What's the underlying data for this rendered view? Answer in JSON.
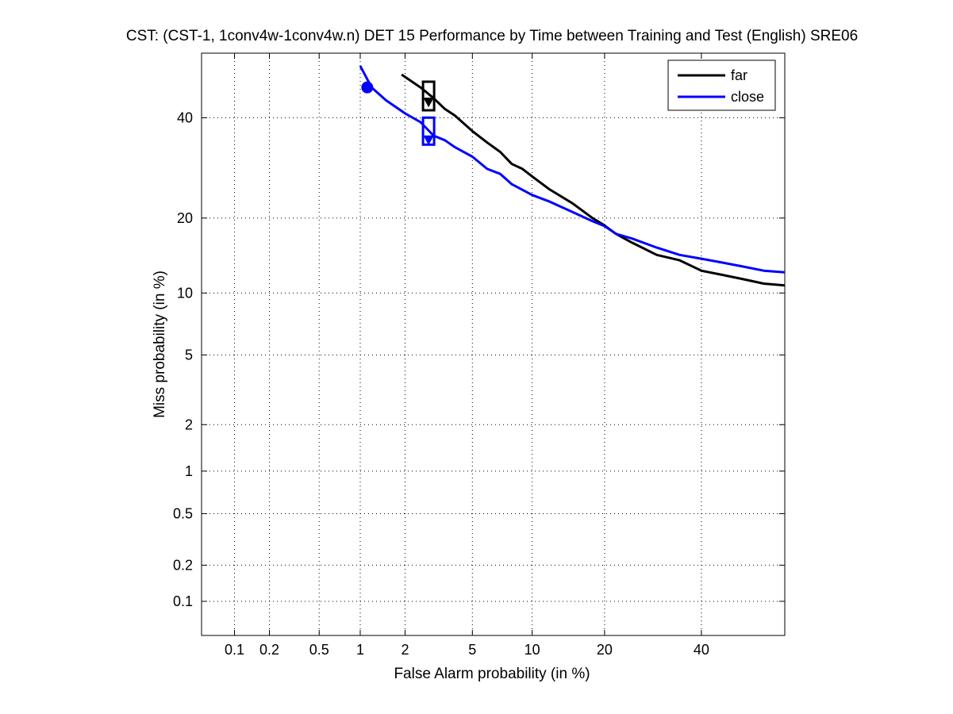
{
  "chart_data": {
    "type": "line",
    "title": "CST: (CST-1, 1conv4w-1conv4w.n) DET 15 Performance by Time between Training and Test (English) SRE06",
    "xlabel": "False Alarm probability (in %)",
    "ylabel": "Miss probability (in %)",
    "xscale": "probit",
    "yscale": "probit",
    "xlim": [
      0.05,
      60
    ],
    "ylim": [
      0.05,
      55
    ],
    "xticks": [
      0.1,
      0.2,
      0.5,
      1,
      2,
      5,
      10,
      20,
      40
    ],
    "xtick_labels": [
      "0.1",
      "0.2",
      "0.5",
      "1",
      "2",
      "5",
      "10",
      "20",
      "40"
    ],
    "yticks": [
      0.1,
      0.2,
      0.5,
      1,
      2,
      5,
      10,
      20,
      40
    ],
    "ytick_labels": [
      "0.1",
      "0.2",
      "0.5",
      "1",
      "2",
      "5",
      "10",
      "20",
      "40"
    ],
    "grid": true,
    "legend_position": "top-right",
    "series": [
      {
        "name": "far",
        "color": "#000000",
        "x": [
          1.9,
          2.5,
          3.0,
          3.5,
          4.0,
          5.0,
          6.0,
          7.0,
          8.0,
          9.0,
          10.0,
          12.0,
          15.0,
          18.0,
          20.0,
          22.0,
          25.0,
          30.0,
          35.0,
          40.0,
          45.0,
          50.0,
          55.0,
          60.0
        ],
        "y": [
          50.0,
          47.0,
          44.5,
          42.0,
          40.5,
          37.0,
          34.5,
          32.5,
          30.0,
          29.0,
          27.5,
          25.0,
          22.5,
          20.0,
          18.8,
          17.5,
          16.2,
          14.5,
          13.8,
          12.5,
          12.0,
          11.5,
          11.0,
          10.8
        ],
        "operating_point": {
          "x": 2.8,
          "y": 43.5
        },
        "min_point": {
          "x": 2.8,
          "y": 45.0
        }
      },
      {
        "name": "close",
        "color": "#0000ff",
        "x": [
          1.0,
          1.2,
          1.5,
          2.0,
          2.5,
          3.0,
          3.5,
          4.0,
          5.0,
          6.0,
          7.0,
          8.0,
          10.0,
          12.0,
          15.0,
          18.0,
          20.0,
          22.0,
          25.0,
          30.0,
          35.0,
          40.0,
          45.0,
          50.0,
          55.0,
          60.0
        ],
        "y": [
          52.0,
          47.0,
          44.0,
          41.0,
          39.0,
          36.0,
          35.0,
          33.5,
          31.5,
          29.0,
          28.0,
          26.0,
          24.0,
          22.8,
          21.0,
          19.5,
          18.7,
          17.5,
          16.8,
          15.5,
          14.5,
          14.0,
          13.5,
          13.0,
          12.5,
          12.3
        ],
        "operating_point": {
          "x": 2.8,
          "y": 35.0
        },
        "min_point": {
          "x": 1.12,
          "y": 47.0
        },
        "box_point": {
          "x": 2.8,
          "y": 37.0
        }
      }
    ]
  }
}
